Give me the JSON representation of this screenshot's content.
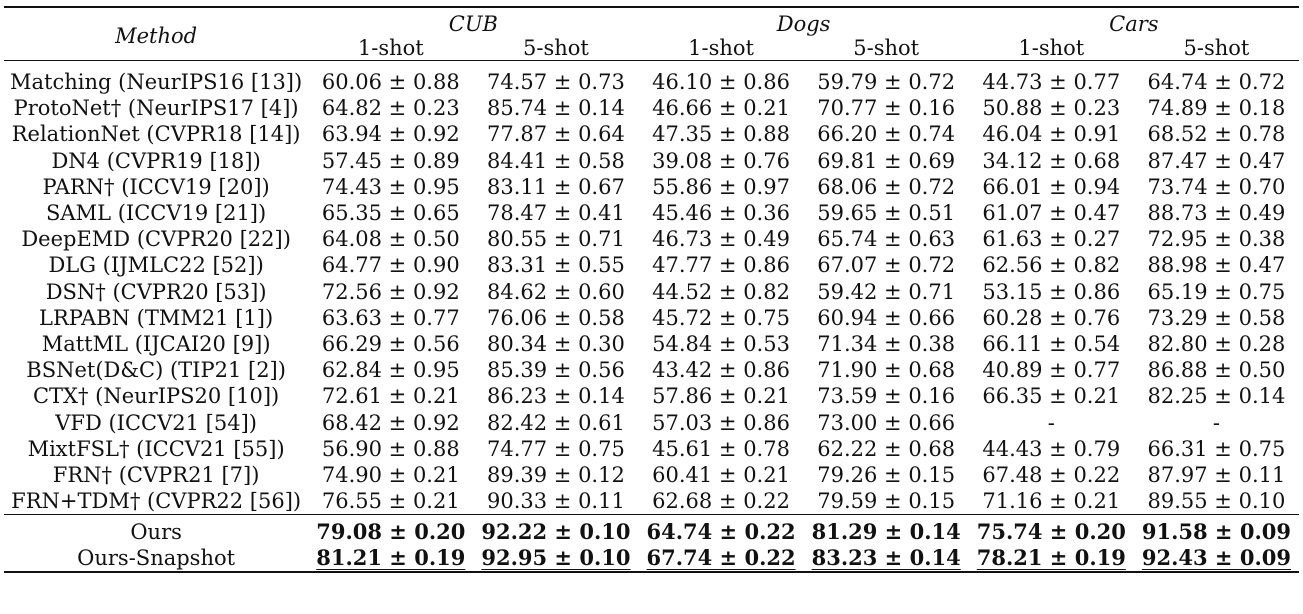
{
  "header": {
    "method": "Method",
    "datasets": [
      "CUB",
      "Dogs",
      "Cars"
    ],
    "shots": [
      "1-shot",
      "5-shot",
      "1-shot",
      "5-shot",
      "1-shot",
      "5-shot"
    ]
  },
  "rows": [
    {
      "method": "Matching (NeurIPS16 [13])",
      "values": [
        "60.06 ± 0.88",
        "74.57 ± 0.73",
        "46.10 ± 0.86",
        "59.79 ± 0.72",
        "44.73 ± 0.77",
        "64.74 ± 0.72"
      ]
    },
    {
      "method": "ProtoNet† (NeurIPS17 [4])",
      "values": [
        "64.82 ± 0.23",
        "85.74 ± 0.14",
        "46.66 ± 0.21",
        "70.77 ± 0.16",
        "50.88 ± 0.23",
        "74.89 ± 0.18"
      ]
    },
    {
      "method": "RelationNet (CVPR18 [14])",
      "values": [
        "63.94 ± 0.92",
        "77.87 ± 0.64",
        "47.35 ± 0.88",
        "66.20 ± 0.74",
        "46.04 ± 0.91",
        "68.52 ± 0.78"
      ]
    },
    {
      "method": "DN4 (CVPR19 [18])",
      "values": [
        "57.45 ± 0.89",
        "84.41 ± 0.58",
        "39.08 ± 0.76",
        "69.81 ± 0.69",
        "34.12 ± 0.68",
        "87.47 ± 0.47"
      ]
    },
    {
      "method": "PARN† (ICCV19 [20])",
      "values": [
        "74.43 ± 0.95",
        "83.11 ± 0.67",
        "55.86 ± 0.97",
        "68.06 ± 0.72",
        "66.01 ± 0.94",
        "73.74 ± 0.70"
      ]
    },
    {
      "method": "SAML (ICCV19 [21])",
      "values": [
        "65.35 ± 0.65",
        "78.47 ± 0.41",
        "45.46 ± 0.36",
        "59.65 ± 0.51",
        "61.07 ± 0.47",
        "88.73 ± 0.49"
      ]
    },
    {
      "method": "DeepEMD (CVPR20 [22])",
      "values": [
        "64.08 ± 0.50",
        "80.55 ± 0.71",
        "46.73 ± 0.49",
        "65.74 ± 0.63",
        "61.63 ± 0.27",
        "72.95 ± 0.38"
      ]
    },
    {
      "method": "DLG (IJMLC22 [52])",
      "values": [
        "64.77 ± 0.90",
        "83.31 ± 0.55",
        "47.77 ± 0.86",
        "67.07 ± 0.72",
        "62.56 ± 0.82",
        "88.98 ± 0.47"
      ]
    },
    {
      "method": "DSN† (CVPR20 [53])",
      "values": [
        "72.56 ± 0.92",
        "84.62 ± 0.60",
        "44.52 ± 0.82",
        "59.42 ± 0.71",
        "53.15 ± 0.86",
        "65.19 ± 0.75"
      ]
    },
    {
      "method": "LRPABN (TMM21 [1])",
      "values": [
        "63.63 ± 0.77",
        "76.06 ± 0.58",
        "45.72 ± 0.75",
        "60.94 ± 0.66",
        "60.28 ± 0.76",
        "73.29 ± 0.58"
      ]
    },
    {
      "method": "MattML (IJCAI20 [9])",
      "values": [
        "66.29 ± 0.56",
        "80.34 ± 0.30",
        "54.84 ± 0.53",
        "71.34 ± 0.38",
        "66.11 ± 0.54",
        "82.80 ± 0.28"
      ]
    },
    {
      "method": "BSNet(D&C) (TIP21 [2])",
      "values": [
        "62.84 ± 0.95",
        "85.39 ± 0.56",
        "43.42 ± 0.86",
        "71.90 ± 0.68",
        "40.89 ± 0.77",
        "86.88 ± 0.50"
      ]
    },
    {
      "method": "CTX† (NeurIPS20 [10])",
      "values": [
        "72.61 ± 0.21",
        "86.23 ± 0.14",
        "57.86 ± 0.21",
        "73.59 ± 0.16",
        "66.35 ± 0.21",
        "82.25 ± 0.14"
      ]
    },
    {
      "method": "VFD (ICCV21 [54])",
      "values": [
        "68.42 ± 0.92",
        "82.42 ± 0.61",
        "57.03 ± 0.86",
        "73.00 ± 0.66",
        "-",
        "-"
      ]
    },
    {
      "method": "MixtFSL† (ICCV21 [55])",
      "values": [
        "56.90 ± 0.88",
        "74.77 ± 0.75",
        "45.61 ± 0.78",
        "62.22 ± 0.68",
        "44.43 ± 0.79",
        "66.31 ± 0.75"
      ]
    },
    {
      "method": "FRN† (CVPR21 [7])",
      "values": [
        "74.90 ± 0.21",
        "89.39 ± 0.12",
        "60.41 ± 0.21",
        "79.26 ± 0.15",
        "67.48 ± 0.22",
        "87.97 ± 0.11"
      ]
    },
    {
      "method": "FRN+TDM† (CVPR22 [56])",
      "values": [
        "76.55 ± 0.21",
        "90.33 ± 0.11",
        "62.68 ± 0.22",
        "79.59 ± 0.15",
        "71.16 ± 0.21",
        "89.55 ± 0.10"
      ]
    }
  ],
  "ours": [
    {
      "method": "Ours",
      "values": [
        "79.08 ± 0.20",
        "92.22 ± 0.10",
        "64.74 ± 0.22",
        "81.29 ± 0.14",
        "75.74 ± 0.20",
        "91.58 ± 0.09"
      ],
      "bold": true,
      "underline": false
    },
    {
      "method": "Ours-Snapshot",
      "values": [
        "81.21 ± 0.19",
        "92.95 ± 0.10",
        "67.74 ± 0.22",
        "83.23 ± 0.14",
        "78.21 ± 0.19",
        "92.43 ± 0.09"
      ],
      "bold": true,
      "underline": true
    }
  ]
}
